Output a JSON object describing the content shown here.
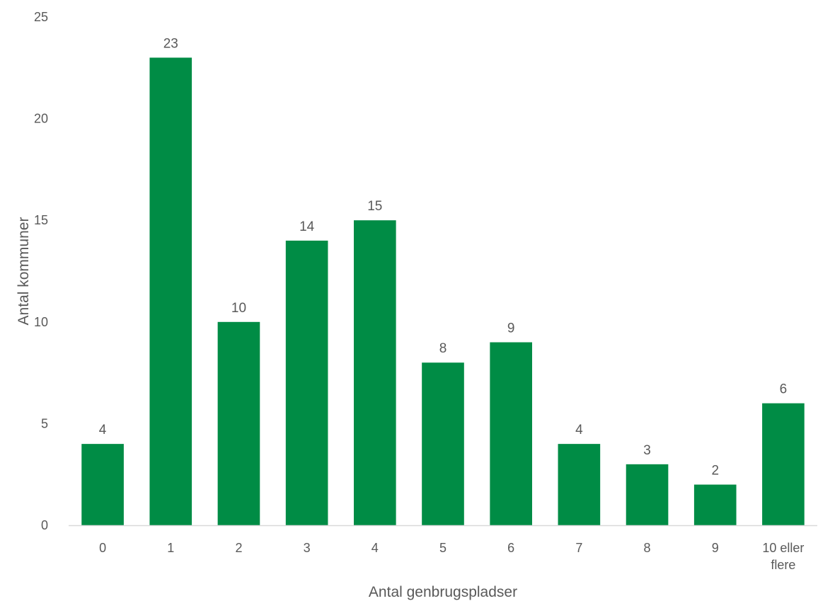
{
  "chart_data": {
    "type": "bar",
    "categories": [
      [
        "0"
      ],
      [
        "1"
      ],
      [
        "2"
      ],
      [
        "3"
      ],
      [
        "4"
      ],
      [
        "5"
      ],
      [
        "6"
      ],
      [
        "7"
      ],
      [
        "8"
      ],
      [
        "9"
      ],
      [
        "10 eller",
        "flere"
      ]
    ],
    "values": [
      4,
      23,
      10,
      14,
      15,
      8,
      9,
      4,
      3,
      2,
      6
    ],
    "xlabel": "Antal genbrugspladser",
    "ylabel": "Antal kommuner",
    "ylim": [
      0,
      25
    ],
    "yticks": [
      0,
      5,
      10,
      15,
      20,
      25
    ],
    "grid": false,
    "data_labels": true,
    "colors": {
      "bar": "#008C45",
      "axis": "#D9D9D9",
      "text": "#595959"
    }
  }
}
